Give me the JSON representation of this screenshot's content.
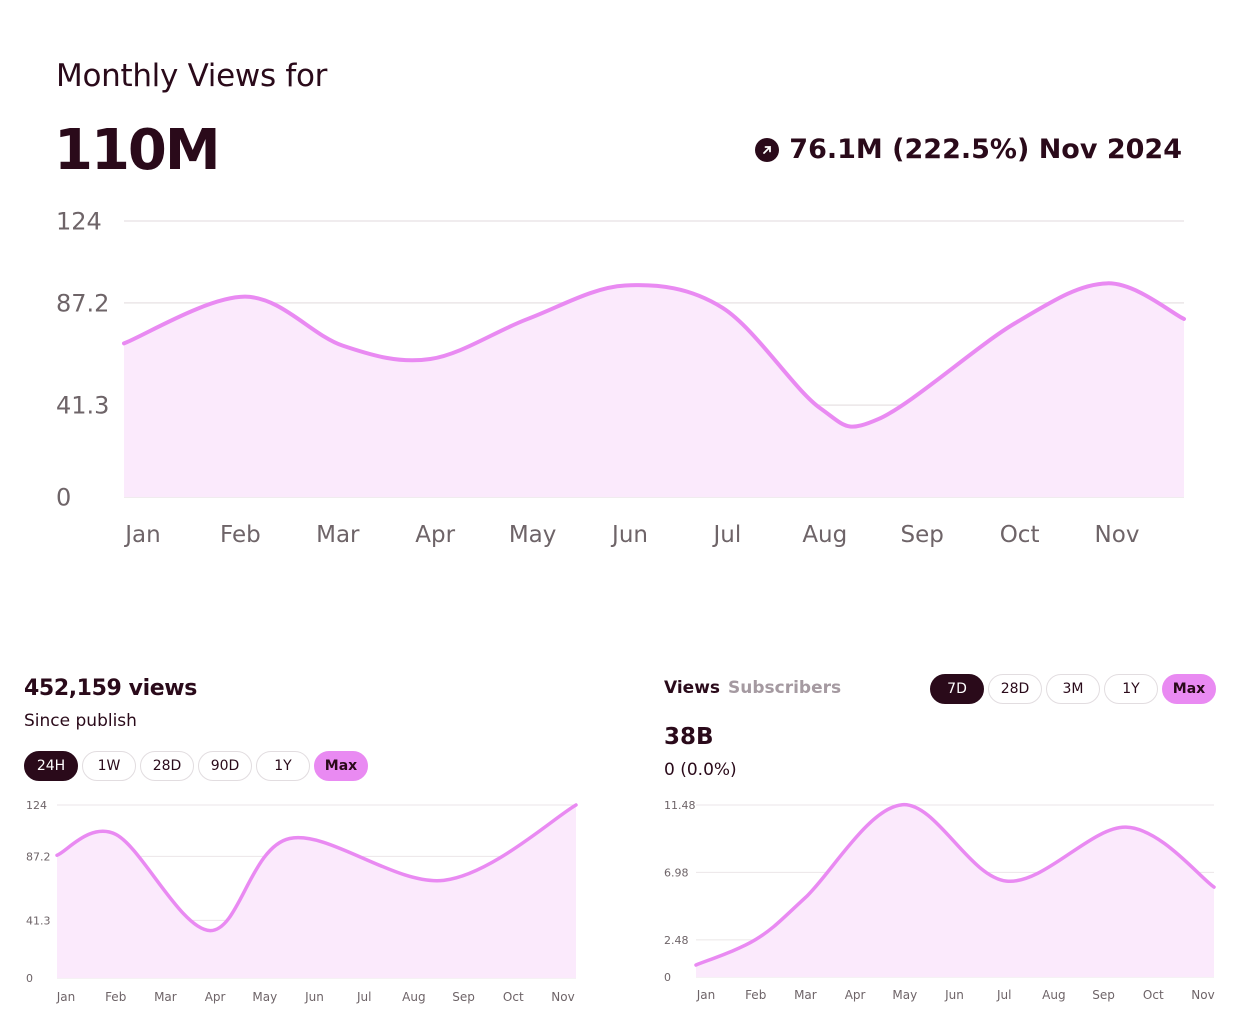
{
  "header": {
    "title": "Monthly Views for",
    "total": "110M",
    "change_text": "76.1M (222.5%) Nov 2024",
    "change_icon": "arrow-up-right-icon"
  },
  "left_panel": {
    "views_label": "452,159 views",
    "since_label": "Since publish",
    "ranges": [
      "24H",
      "1W",
      "28D",
      "90D",
      "1Y",
      "Max"
    ],
    "selected_dark": "24H",
    "selected_pink": "Max"
  },
  "right_panel": {
    "tabs": [
      "Views",
      "Subscribers"
    ],
    "active_tab": "Views",
    "ranges": [
      "7D",
      "28D",
      "3M",
      "1Y",
      "Max"
    ],
    "selected_dark": "7D",
    "selected_pink": "Max",
    "value": "38B",
    "delta": "0 (0.0%)"
  },
  "colors": {
    "line": "#e98af2",
    "fill": "#fbeafc",
    "text_dark": "#2a0a1a",
    "axis_text": "#6e6468",
    "grid": "#ebe6e8"
  },
  "chart_data": [
    {
      "type": "area",
      "categories": [
        "Jan",
        "Feb",
        "Mar",
        "Apr",
        "May",
        "Jun",
        "Jul",
        "Aug",
        "Sep",
        "Oct",
        "Nov"
      ],
      "x": [
        0,
        1.05,
        2.05,
        2.95,
        3.95,
        4.95,
        5.95,
        6.95,
        7.55,
        8.95,
        9.9,
        10.75
      ],
      "values": [
        69,
        90,
        68,
        62,
        80,
        95,
        85,
        40,
        35,
        78,
        96,
        80
      ],
      "yticks": [
        0,
        41.3,
        87.2,
        124
      ],
      "ylim": [
        0,
        124
      ],
      "tick_labels": [
        "0",
        "41.3",
        "87.2",
        "124"
      ]
    },
    {
      "type": "area",
      "categories": [
        "Jan",
        "Feb",
        "Mar",
        "Apr",
        "May",
        "Jun",
        "Jul",
        "Aug",
        "Sep",
        "Oct",
        "Nov"
      ],
      "x": [
        0,
        1,
        2.9,
        4.5,
        7.6,
        10.85
      ],
      "values": [
        88,
        103,
        34,
        100,
        70,
        124
      ],
      "yticks": [
        0,
        41.3,
        87.2,
        124
      ],
      "ylim": [
        0,
        124
      ],
      "tick_labels": [
        "0",
        "41.3",
        "87.2",
        "124"
      ]
    },
    {
      "type": "area",
      "categories": [
        "Jan",
        "Feb",
        "Mar",
        "Apr",
        "May",
        "Jun",
        "Jul",
        "Aug",
        "Sep",
        "Oct",
        "Nov"
      ],
      "x": [
        -0.2,
        1,
        2,
        3.95,
        6.05,
        8.45,
        10.2
      ],
      "values": [
        0.8,
        2.5,
        5.3,
        11.5,
        6.4,
        10.0,
        6.0
      ],
      "yticks": [
        0,
        2.48,
        6.98,
        11.48
      ],
      "ylim": [
        0,
        11.48
      ],
      "tick_labels": [
        "0",
        "2.48",
        "6.98",
        "11.48"
      ]
    }
  ]
}
